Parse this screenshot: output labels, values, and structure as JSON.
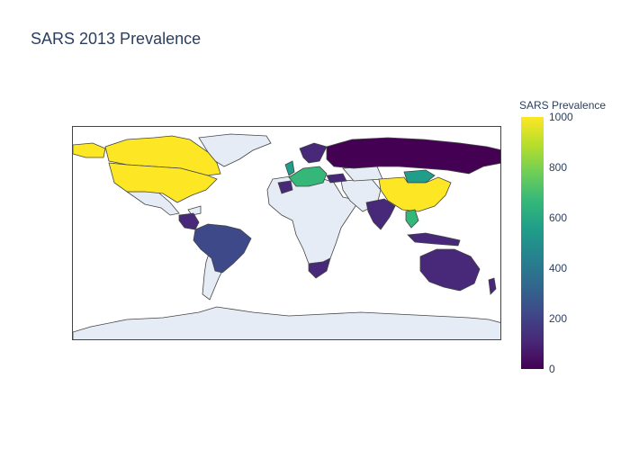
{
  "title": "SARS 2013 Prevalence",
  "colorbar": {
    "title": "SARS Prevalence",
    "ticks": [
      "1000",
      "800",
      "600",
      "400",
      "200",
      "0"
    ],
    "range": [
      0,
      1000
    ]
  },
  "colors": {
    "land_default": "#e5ecf6",
    "border": "#444444",
    "scale": [
      "#440154",
      "#482878",
      "#3e4989",
      "#31688e",
      "#26828e",
      "#1f9e89",
      "#35b779",
      "#6ece58",
      "#b5de2b",
      "#fde725"
    ]
  },
  "regions": [
    {
      "name": "usa",
      "value": 990
    },
    {
      "name": "canada",
      "value": 990
    },
    {
      "name": "russia",
      "value": 40
    },
    {
      "name": "china",
      "value": 990
    },
    {
      "name": "brazil",
      "value": 170
    },
    {
      "name": "colombia",
      "value": 60
    },
    {
      "name": "india",
      "value": 150
    },
    {
      "name": "australia",
      "value": 90
    },
    {
      "name": "south-africa",
      "value": 100
    },
    {
      "name": "mongolia",
      "value": 560
    },
    {
      "name": "vietnam",
      "value": 700
    },
    {
      "name": "indonesia",
      "value": 80
    },
    {
      "name": "europe-west",
      "value": 650
    },
    {
      "name": "uk",
      "value": 560
    },
    {
      "name": "spain",
      "value": 120
    },
    {
      "name": "scandinavia",
      "value": 150
    },
    {
      "name": "turkey",
      "value": 60
    }
  ]
}
